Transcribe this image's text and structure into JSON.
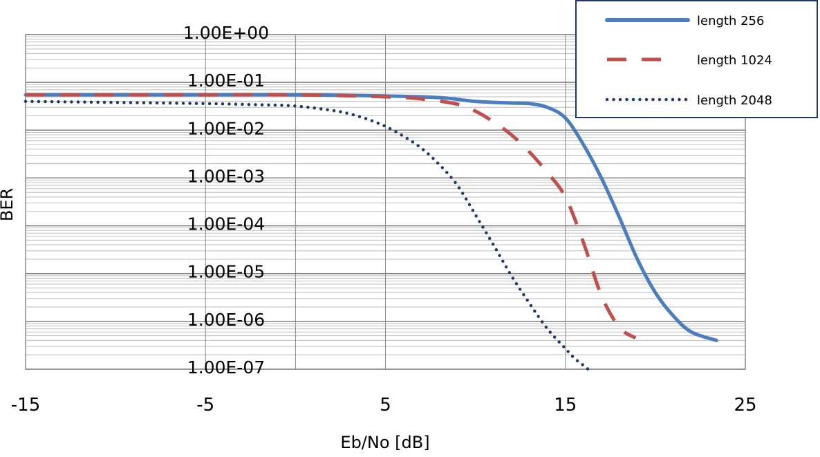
{
  "chart_data": {
    "type": "line",
    "xlabel": "Eb/No [dB]",
    "ylabel": "BER",
    "xlim": [
      -15,
      25
    ],
    "x_ticks": [
      -15,
      -5,
      5,
      15,
      25
    ],
    "y_scale": "log",
    "ylim": [
      1e-07,
      1
    ],
    "y_tick_labels": [
      "1.00E+00",
      "1.00E-01",
      "1.00E-02",
      "1.00E-03",
      "1.00E-04",
      "1.00E-05",
      "1.00E-06",
      "1.00E-07"
    ],
    "y_tick_values": [
      1,
      0.1,
      0.01,
      0.001,
      0.0001,
      1e-05,
      1e-06,
      1e-07
    ],
    "grid": true,
    "legend_position": "top-right",
    "series": [
      {
        "name": "length 256",
        "color": "#4a7ebf",
        "style": "solid",
        "x": [
          -15,
          -5,
          0,
          5,
          8,
          10,
          12,
          13,
          14,
          15,
          16,
          17,
          18,
          19,
          20,
          21,
          22,
          23.4
        ],
        "y": [
          0.055,
          0.055,
          0.055,
          0.052,
          0.048,
          0.04,
          0.037,
          0.036,
          0.03,
          0.018,
          0.005,
          0.001,
          0.00015,
          2e-05,
          4e-06,
          1.3e-06,
          6e-07,
          4e-07
        ]
      },
      {
        "name": "length 1024",
        "color": "#c0504d",
        "style": "dashed",
        "x": [
          -15,
          -5,
          0,
          5,
          7,
          9,
          10,
          11,
          12,
          13,
          14,
          15,
          16,
          17,
          18,
          18.9
        ],
        "y": [
          0.055,
          0.055,
          0.055,
          0.05,
          0.045,
          0.035,
          0.025,
          0.015,
          0.008,
          0.0035,
          0.0013,
          0.0004,
          4.5e-05,
          3.5e-06,
          7.5e-07,
          4.5e-07
        ]
      },
      {
        "name": "length 2048",
        "color": "#1f3864",
        "style": "dotted",
        "x": [
          -15,
          -10,
          -5,
          -2,
          0,
          2,
          3,
          4,
          5,
          6,
          7,
          8,
          9,
          10,
          11,
          12,
          13,
          14,
          15,
          15.5,
          16,
          16.5
        ],
        "y": [
          0.04,
          0.038,
          0.036,
          0.034,
          0.032,
          0.026,
          0.022,
          0.017,
          0.012,
          0.0075,
          0.0042,
          0.0019,
          0.0007,
          0.00017,
          4e-05,
          9e-06,
          2.4e-06,
          7e-07,
          2.7e-07,
          1.7e-07,
          1.2e-07,
          8.5e-08
        ]
      }
    ]
  }
}
